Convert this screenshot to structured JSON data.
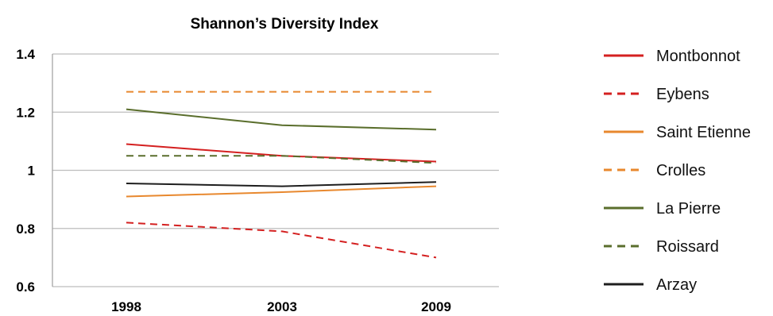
{
  "chart_data": {
    "type": "line",
    "title": "Shannon’s Diversity Index",
    "xlabel": "",
    "ylabel": "",
    "categories": [
      "1998",
      "2003",
      "2009"
    ],
    "ylim": [
      0.6,
      1.4
    ],
    "yticks": [
      "0.6",
      "0.8",
      "1",
      "1.2",
      "1.4"
    ],
    "ytick_values": [
      0.6,
      0.8,
      1.0,
      1.2,
      1.4
    ],
    "grid": true,
    "legend_position": "right",
    "series": [
      {
        "name": "Montbonnot",
        "values": [
          1.09,
          1.05,
          1.03
        ],
        "color": "#d42020",
        "dash": "solid"
      },
      {
        "name": "Eybens",
        "values": [
          0.82,
          0.79,
          0.7
        ],
        "color": "#d42020",
        "dash": "dashed"
      },
      {
        "name": "Saint Etienne",
        "values": [
          0.91,
          0.925,
          0.945
        ],
        "color": "#e8882e",
        "dash": "solid"
      },
      {
        "name": "Crolles",
        "values": [
          1.27,
          1.27,
          1.27
        ],
        "color": "#e8882e",
        "dash": "dashed"
      },
      {
        "name": "La Pierre",
        "values": [
          1.21,
          1.155,
          1.14
        ],
        "color": "#5a6e2c",
        "dash": "solid"
      },
      {
        "name": "Roissard",
        "values": [
          1.05,
          1.05,
          1.025
        ],
        "color": "#5a6e2c",
        "dash": "dashed"
      },
      {
        "name": "Arzay",
        "values": [
          0.955,
          0.945,
          0.96
        ],
        "color": "#1e1e1e",
        "dash": "solid"
      }
    ]
  }
}
